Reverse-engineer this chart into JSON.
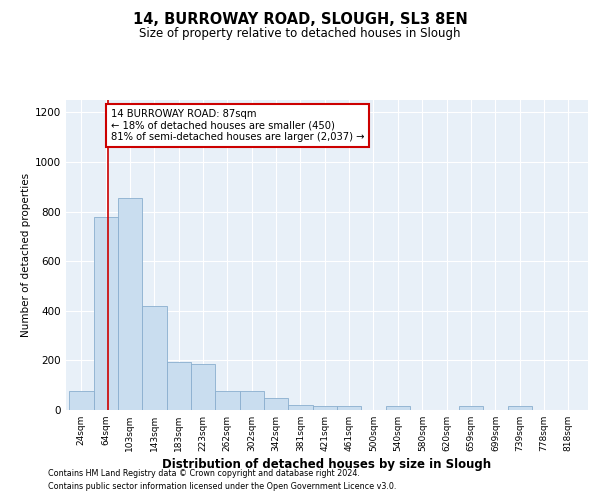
{
  "title": "14, BURROWAY ROAD, SLOUGH, SL3 8EN",
  "subtitle": "Size of property relative to detached houses in Slough",
  "xlabel": "Distribution of detached houses by size in Slough",
  "ylabel": "Number of detached properties",
  "bar_color": "#c9ddef",
  "bar_edge_color": "#8aaece",
  "background_color": "#e8f0f8",
  "grid_color": "#ffffff",
  "property_line_color": "#cc0000",
  "property_size": 87,
  "annotation_text": "14 BURROWAY ROAD: 87sqm\n← 18% of detached houses are smaller (450)\n81% of semi-detached houses are larger (2,037) →",
  "categories": [
    "24sqm",
    "64sqm",
    "103sqm",
    "143sqm",
    "183sqm",
    "223sqm",
    "262sqm",
    "302sqm",
    "342sqm",
    "381sqm",
    "421sqm",
    "461sqm",
    "500sqm",
    "540sqm",
    "580sqm",
    "620sqm",
    "659sqm",
    "699sqm",
    "739sqm",
    "778sqm",
    "818sqm"
  ],
  "bar_left_edges": [
    24,
    64,
    103,
    143,
    183,
    223,
    262,
    302,
    342,
    381,
    421,
    461,
    500,
    540,
    580,
    620,
    659,
    699,
    739,
    778,
    818
  ],
  "bar_widths": [
    40,
    39,
    40,
    40,
    40,
    39,
    40,
    40,
    39,
    40,
    40,
    39,
    40,
    40,
    40,
    39,
    40,
    40,
    39,
    40,
    40
  ],
  "bar_heights": [
    75,
    780,
    855,
    420,
    195,
    185,
    75,
    75,
    50,
    20,
    15,
    15,
    0,
    15,
    0,
    0,
    15,
    0,
    15,
    0,
    0
  ],
  "ylim": [
    0,
    1250
  ],
  "yticks": [
    0,
    200,
    400,
    600,
    800,
    1000,
    1200
  ],
  "xlim": [
    19,
    870
  ],
  "footnote1": "Contains HM Land Registry data © Crown copyright and database right 2024.",
  "footnote2": "Contains public sector information licensed under the Open Government Licence v3.0."
}
